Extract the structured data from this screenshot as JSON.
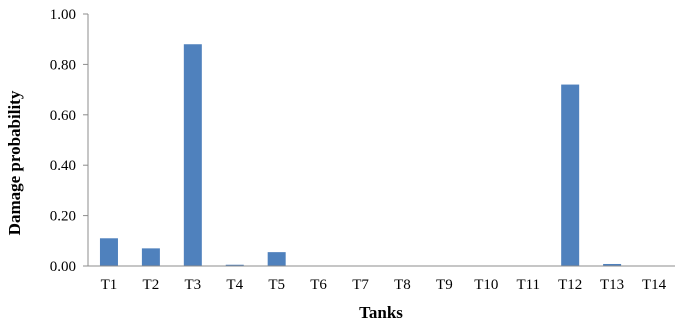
{
  "chart_data": {
    "type": "bar",
    "title": "",
    "xlabel": "Tanks",
    "ylabel": "Damage probability",
    "categories": [
      "T1",
      "T2",
      "T3",
      "T4",
      "T5",
      "T6",
      "T7",
      "T8",
      "T9",
      "T10",
      "T11",
      "T12",
      "T13",
      "T14"
    ],
    "values": [
      0.11,
      0.07,
      0.88,
      0.005,
      0.055,
      0,
      0,
      0,
      0,
      0,
      0,
      0.72,
      0.008,
      0
    ],
    "ylim": [
      0,
      1.0
    ],
    "yticks": [
      "0.00",
      "0.20",
      "0.40",
      "0.60",
      "0.80",
      "1.00"
    ],
    "grid": false,
    "bar_color": "#4f81bd",
    "axis_color": "#8c8c8c"
  }
}
